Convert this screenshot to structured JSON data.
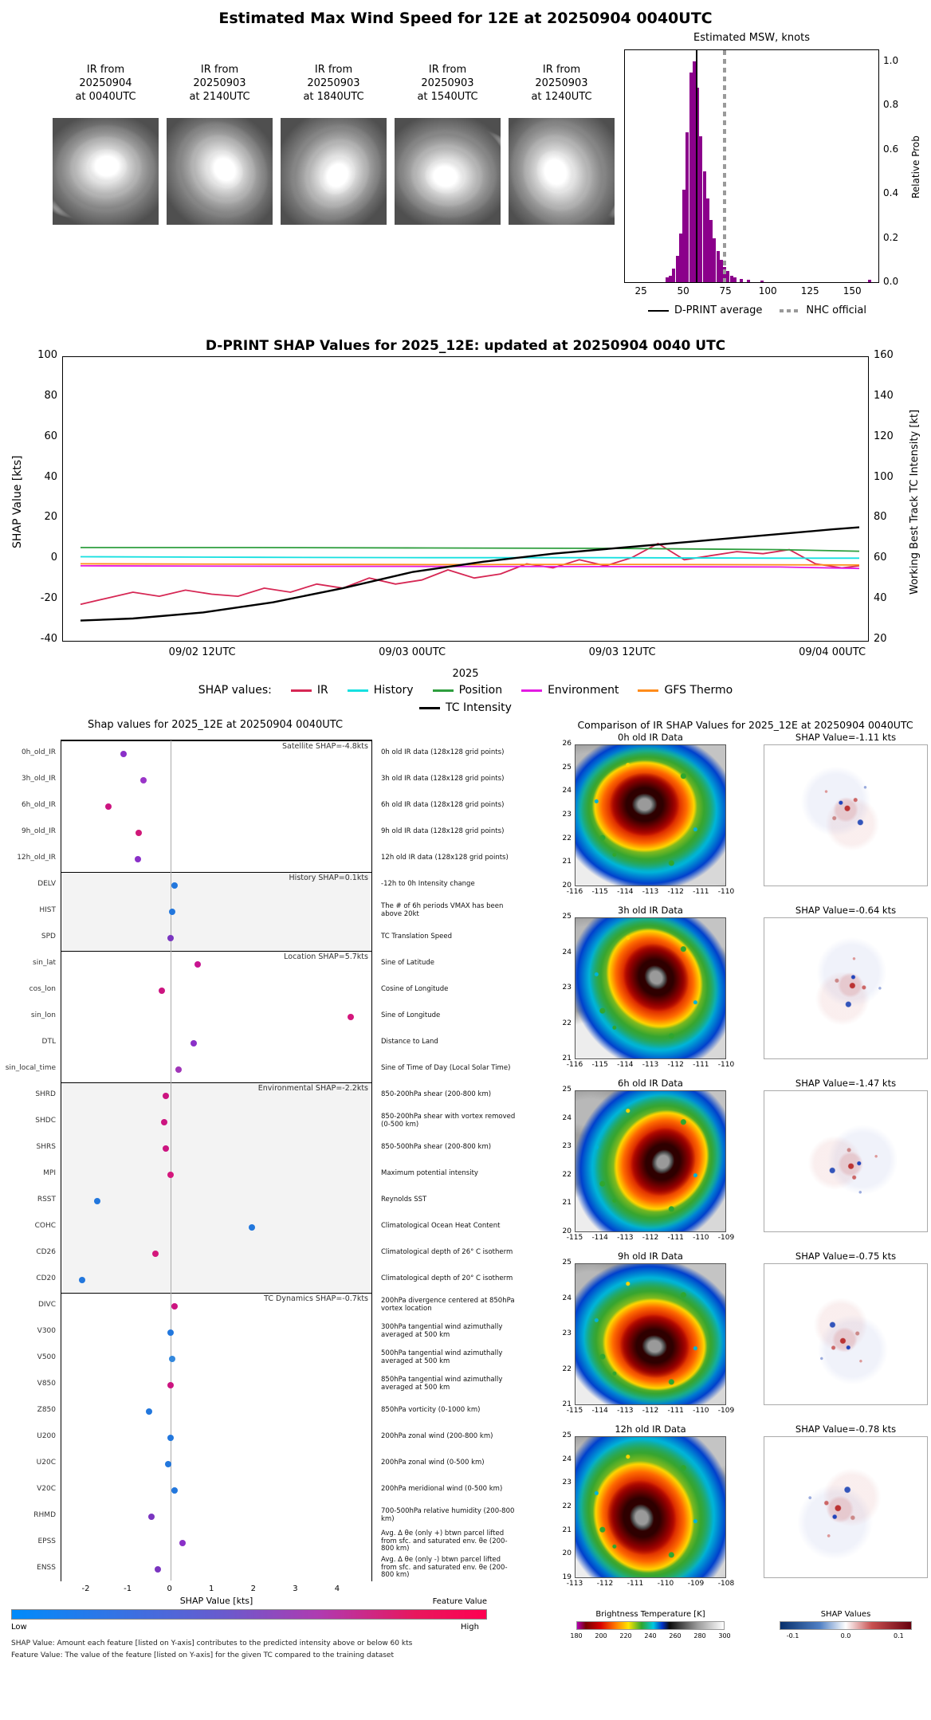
{
  "top": {
    "title": "Estimated Max Wind Speed for 12E at 20250904 0040UTC",
    "thumbnails": [
      {
        "lines": [
          "IR from",
          "20250904",
          "at 0040UTC"
        ]
      },
      {
        "lines": [
          "IR from",
          "20250903",
          "at 2140UTC"
        ]
      },
      {
        "lines": [
          "IR from",
          "20250903",
          "at 1840UTC"
        ]
      },
      {
        "lines": [
          "IR from",
          "20250903",
          "at 1540UTC"
        ]
      },
      {
        "lines": [
          "IR from",
          "20250903",
          "at 1240UTC"
        ]
      }
    ]
  },
  "chart_data": [
    {
      "type": "bar",
      "title": "Estimated MSW, knots",
      "ylabel": "Relative Prob",
      "xlim": [
        15,
        165
      ],
      "ylim": [
        0,
        1.05
      ],
      "xticks": [
        25,
        50,
        75,
        100,
        125,
        150
      ],
      "yticks": [
        1.0,
        0.8,
        0.6,
        0.4,
        0.2,
        0.0
      ],
      "bar_color": "#8b008b",
      "bars": [
        [
          40,
          0.02
        ],
        [
          42,
          0.03
        ],
        [
          44,
          0.06
        ],
        [
          46,
          0.12
        ],
        [
          48,
          0.22
        ],
        [
          50,
          0.42
        ],
        [
          52,
          0.68
        ],
        [
          54,
          0.95
        ],
        [
          56,
          1.0
        ],
        [
          58,
          0.88
        ],
        [
          60,
          0.66
        ],
        [
          62,
          0.5
        ],
        [
          64,
          0.38
        ],
        [
          66,
          0.28
        ],
        [
          68,
          0.2
        ],
        [
          70,
          0.14
        ],
        [
          72,
          0.1
        ],
        [
          74,
          0.07
        ],
        [
          76,
          0.05
        ],
        [
          78,
          0.03
        ],
        [
          80,
          0.02
        ],
        [
          84,
          0.015
        ],
        [
          88,
          0.01
        ],
        [
          96,
          0.006
        ],
        [
          160,
          0.012
        ]
      ],
      "dprint_average": 57,
      "nhc_official": 73,
      "legend_dprint": "D-PRINT average",
      "legend_nhc": "NHC official"
    },
    {
      "type": "line",
      "title": "D-PRINT SHAP Values for 2025_12E: updated at 20250904 0040 UTC",
      "ylabel_left": "SHAP Value [kts]",
      "ylabel_right": "Working Best Track TC Intensity [kt]",
      "xlabel": "2025",
      "legend_prefix": "SHAP values:",
      "ylim_left": [
        -40,
        100
      ],
      "ylim_right": [
        20,
        160
      ],
      "yticks_left": [
        100,
        80,
        60,
        40,
        20,
        0,
        -20,
        -40
      ],
      "yticks_right": [
        160,
        140,
        120,
        100,
        80,
        60,
        40,
        20
      ],
      "xtick_labels": [
        "09/02 12UTC",
        "09/03 00UTC",
        "09/03 12UTC",
        "09/04 00UTC"
      ],
      "xtick_hours": [
        12,
        24,
        36,
        48
      ],
      "series": [
        {
          "name": "IR",
          "color": "#d62754",
          "axis": "left",
          "x": [
            5,
            6.5,
            8,
            9.5,
            11,
            12.5,
            14,
            15.5,
            17,
            18.5,
            20,
            21.5,
            23,
            24.5,
            26,
            27.5,
            29,
            30.5,
            32,
            33.5,
            35,
            36.5,
            38,
            39.5,
            41,
            42.5,
            44,
            45.5,
            47,
            48.5,
            49.5
          ],
          "values": [
            -22,
            -19,
            -16,
            -18,
            -15,
            -17,
            -18,
            -14,
            -16,
            -12,
            -14,
            -9,
            -12,
            -10,
            -5,
            -9,
            -7,
            -2,
            -4,
            0,
            -3,
            1,
            8,
            0,
            2,
            4,
            3,
            5,
            -2,
            -4,
            -3
          ]
        },
        {
          "name": "History",
          "color": "#16e0e0",
          "axis": "left",
          "x": [
            5,
            15,
            25,
            35,
            45,
            49.5
          ],
          "values": [
            1.5,
            1.2,
            1,
            1,
            0.8,
            0.8
          ]
        },
        {
          "name": "Position",
          "color": "#2e9e3e",
          "axis": "left",
          "x": [
            5,
            15,
            25,
            35,
            45,
            49.5
          ],
          "values": [
            6,
            6,
            5.8,
            5.6,
            5,
            4.2
          ]
        },
        {
          "name": "Environment",
          "color": "#e31ae3",
          "axis": "left",
          "x": [
            5,
            15,
            25,
            35,
            45,
            49.5
          ],
          "values": [
            -3,
            -3.2,
            -3.3,
            -3.4,
            -3.6,
            -4.3
          ]
        },
        {
          "name": "GFS Thermo",
          "color": "#ff8c1a",
          "axis": "left",
          "x": [
            5,
            15,
            25,
            35,
            45,
            49.5
          ],
          "values": [
            -2,
            -2.2,
            -2.4,
            -2.3,
            -2.5,
            -2.6
          ]
        },
        {
          "name": "TC Intensity",
          "color": "#000000",
          "axis": "right",
          "x": [
            5,
            8,
            12,
            16,
            20,
            24,
            28,
            32,
            36,
            40,
            44,
            48,
            49.5
          ],
          "values": [
            30,
            31,
            34,
            39,
            46,
            54,
            59,
            63,
            66,
            69,
            72,
            75,
            76
          ]
        }
      ]
    },
    {
      "type": "scatter",
      "title": "Shap values for 2025_12E at 20250904 0040UTC",
      "xlabel": "SHAP Value [kts]",
      "xlim": [
        -2.6,
        4.8
      ],
      "xticks": [
        -2,
        -1,
        0,
        1,
        2,
        3,
        4
      ],
      "colorbar": {
        "label": "Feature Value",
        "low": "Low",
        "high": "High"
      },
      "groups": [
        {
          "label": "Satellite SHAP=-4.8kts",
          "features": [
            {
              "name": "0h_old_IR",
              "shap": -1.11,
              "color": "#8a30c8",
              "desc": "0h old IR data (128x128 grid points)"
            },
            {
              "name": "3h_old_IR",
              "shap": -0.64,
              "color": "#9a35c8",
              "desc": "3h old IR data (128x128 grid points)"
            },
            {
              "name": "6h_old_IR",
              "shap": -1.47,
              "color": "#cc1480",
              "desc": "6h old IR data (128x128 grid points)"
            },
            {
              "name": "9h_old_IR",
              "shap": -0.75,
              "color": "#d01878",
              "desc": "9h old IR data (128x128 grid points)"
            },
            {
              "name": "12h_old_IR",
              "shap": -0.78,
              "color": "#8a30c8",
              "desc": "12h old IR data (128x128 grid points)"
            }
          ]
        },
        {
          "label": "History SHAP=0.1kts",
          "features": [
            {
              "name": "DELV",
              "shap": 0.1,
              "color": "#2277dd",
              "desc": "-12h to 0h Intensity change"
            },
            {
              "name": "HIST",
              "shap": 0.05,
              "color": "#2277dd",
              "desc": "The # of 6h periods VMAX has been above 20kt"
            },
            {
              "name": "SPD",
              "shap": 0.0,
              "color": "#7a35c0",
              "desc": "TC Translation Speed"
            }
          ]
        },
        {
          "label": "Location SHAP=5.7kts",
          "features": [
            {
              "name": "sin_lat",
              "shap": 0.65,
              "color": "#c81490",
              "desc": "Sine of Latitude"
            },
            {
              "name": "cos_lon",
              "shap": -0.2,
              "color": "#cc1480",
              "desc": "Cosine of Longitude"
            },
            {
              "name": "sin_lon",
              "shap": 4.3,
              "color": "#d4177c",
              "desc": "Sine of Longitude"
            },
            {
              "name": "DTL",
              "shap": 0.55,
              "color": "#8a30c8",
              "desc": "Distance to Land"
            },
            {
              "name": "sin_local_time",
              "shap": 0.2,
              "color": "#a035b8",
              "desc": "Sine of Time of Day (Local Solar Time)"
            }
          ]
        },
        {
          "label": "Environmental SHAP=-2.2kts",
          "features": [
            {
              "name": "SHRD",
              "shap": -0.1,
              "color": "#cc1480",
              "desc": "850-200hPa shear (200-800 km)"
            },
            {
              "name": "SHDC",
              "shap": -0.15,
              "color": "#cc1480",
              "desc": "850-200hPa shear with vortex removed (0-500 km)"
            },
            {
              "name": "SHRS",
              "shap": -0.1,
              "color": "#cc1480",
              "desc": "850-500hPa shear (200-800 km)"
            },
            {
              "name": "MPI",
              "shap": 0.0,
              "color": "#d4177c",
              "desc": "Maximum potential intensity"
            },
            {
              "name": "RSST",
              "shap": -1.75,
              "color": "#2277dd",
              "desc": "Reynolds SST"
            },
            {
              "name": "COHC",
              "shap": 1.95,
              "color": "#2277dd",
              "desc": "Climatological Ocean Heat Content"
            },
            {
              "name": "CD26",
              "shap": -0.35,
              "color": "#d4177c",
              "desc": "Climatological depth of 26° C isotherm"
            },
            {
              "name": "CD20",
              "shap": -2.1,
              "color": "#2277dd",
              "desc": "Climatological depth of 20° C isotherm"
            }
          ]
        },
        {
          "label": "TC Dynamics SHAP=-0.7kts",
          "features": [
            {
              "name": "DIVC",
              "shap": 0.1,
              "color": "#cc1480",
              "desc": "200hPa divergence centered at 850hPa vortex location"
            },
            {
              "name": "V300",
              "shap": 0.0,
              "color": "#2277dd",
              "desc": "300hPa tangential wind azimuthally averaged at 500 km"
            },
            {
              "name": "V500",
              "shap": 0.05,
              "color": "#3388dd",
              "desc": "500hPa tangential wind azimuthally averaged at 500 km"
            },
            {
              "name": "V850",
              "shap": 0.0,
              "color": "#cc1480",
              "desc": "850hPa tangential wind azimuthally averaged at 500 km"
            },
            {
              "name": "Z850",
              "shap": -0.5,
              "color": "#2277dd",
              "desc": "850hPa vorticity (0-1000 km)"
            },
            {
              "name": "U200",
              "shap": 0.0,
              "color": "#2277dd",
              "desc": "200hPa zonal wind (200-800 km)"
            },
            {
              "name": "U20C",
              "shap": -0.05,
              "color": "#2277dd",
              "desc": "200hPa zonal wind (0-500 km)"
            },
            {
              "name": "V20C",
              "shap": 0.1,
              "color": "#2277dd",
              "desc": "200hPa meridional wind (0-500 km)"
            },
            {
              "name": "RHMD",
              "shap": -0.45,
              "color": "#7a35c0",
              "desc": "700-500hPa relative humidity (200-800 km)"
            },
            {
              "name": "EPSS",
              "shap": 0.3,
              "color": "#8a30c8",
              "desc": "Avg. Δ θe (only +) btwn parcel lifted from sfc. and saturated env. θe (200-800 km)"
            },
            {
              "name": "ENSS",
              "shap": -0.3,
              "color": "#7a35c0",
              "desc": "Avg. Δ θe (only -) btwn parcel lifted from sfc. and saturated env. θe (200-800 km)"
            }
          ]
        }
      ]
    },
    {
      "type": "heatmap",
      "title": "Comparison of IR SHAP Values for 2025_12E at 20250904 0040UTC",
      "rows": [
        {
          "ir_title": "0h old IR Data",
          "shap_title": "SHAP Value=-1.11 kts",
          "lat_ticks": [
            26,
            25,
            24,
            23,
            22,
            21,
            20
          ],
          "lon_ticks": [
            -116,
            -115,
            -114,
            -113,
            -112,
            -111,
            -110
          ]
        },
        {
          "ir_title": "3h old IR Data",
          "shap_title": "SHAP Value=-0.64 kts",
          "lat_ticks": [
            25,
            24,
            23,
            22,
            21
          ],
          "lon_ticks": [
            -116,
            -115,
            -114,
            -113,
            -112,
            -111,
            -110
          ]
        },
        {
          "ir_title": "6h old IR Data",
          "shap_title": "SHAP Value=-1.47 kts",
          "lat_ticks": [
            25,
            24,
            23,
            22,
            21,
            20
          ],
          "lon_ticks": [
            -115,
            -114,
            -113,
            -112,
            -111,
            -110,
            -109
          ]
        },
        {
          "ir_title": "9h old IR Data",
          "shap_title": "SHAP Value=-0.75 kts",
          "lat_ticks": [
            25,
            24,
            23,
            22,
            21
          ],
          "lon_ticks": [
            -115,
            -114,
            -113,
            -112,
            -111,
            -110,
            -109
          ]
        },
        {
          "ir_title": "12h old IR Data",
          "shap_title": "SHAP Value=-0.78 kts",
          "lat_ticks": [
            25,
            24,
            23,
            22,
            21,
            20,
            19
          ],
          "lon_ticks": [
            -113,
            -112,
            -111,
            -110,
            -109,
            -108
          ]
        }
      ],
      "bt_colorbar": {
        "label": "Brightness Temperature [K]",
        "ticks": [
          180,
          200,
          220,
          240,
          260,
          280,
          300
        ]
      },
      "shap_colorbar": {
        "label": "SHAP Values",
        "ticks": [
          "-0.1",
          "0.0",
          "0.1"
        ]
      }
    }
  ],
  "footnotes": {
    "shap": "SHAP Value: Amount each feature [listed on Y-axis] contributes to the predicted intensity above or below 60 kts",
    "feature": "Feature Value: The value of the feature [listed on Y-axis] for the given TC compared to the training dataset"
  }
}
